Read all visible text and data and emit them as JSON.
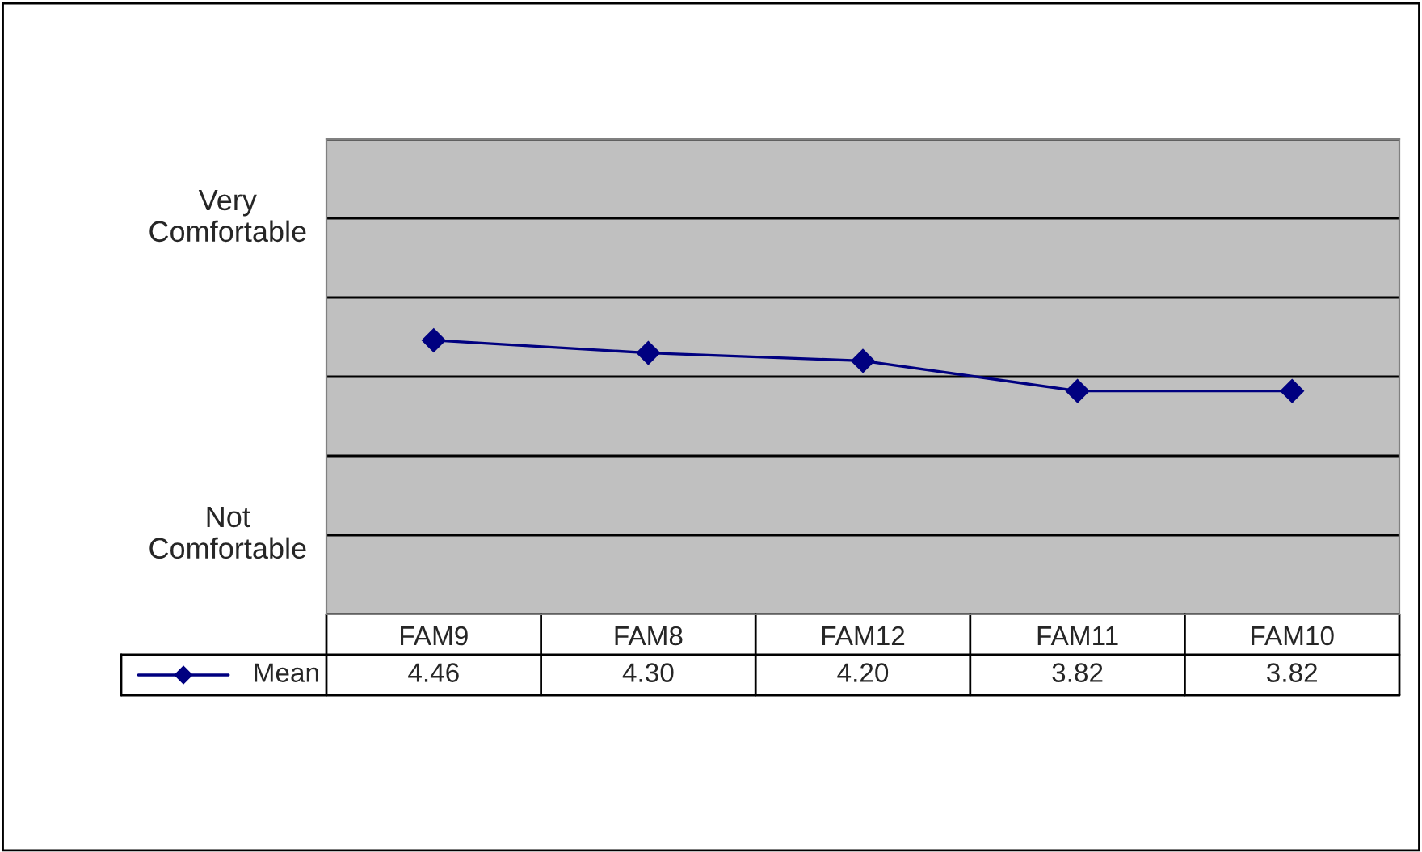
{
  "chart_data": {
    "type": "line",
    "categories": [
      "FAM9",
      "FAM8",
      "FAM12",
      "FAM11",
      "FAM10"
    ],
    "series": [
      {
        "name": "Mean",
        "color": "#000080",
        "values": [
          4.46,
          4.3,
          4.2,
          3.82,
          3.82
        ],
        "value_labels": [
          "4.46",
          "4.30",
          "4.20",
          "3.82",
          "3.82"
        ]
      }
    ],
    "ylim": [
      1,
      7
    ],
    "yticks": [
      {
        "value": 1,
        "label": null
      },
      {
        "value": 2,
        "label": null
      },
      {
        "value": 3,
        "label": null
      },
      {
        "value": 4,
        "label": null
      },
      {
        "value": 5,
        "label": null
      },
      {
        "value": 6,
        "label": null
      },
      {
        "value": 7,
        "label": null
      }
    ],
    "annotations": [
      "Very Comfortable",
      "Not Comfortable"
    ],
    "grid": "y",
    "marker": "diamond",
    "line_style": "solid"
  }
}
